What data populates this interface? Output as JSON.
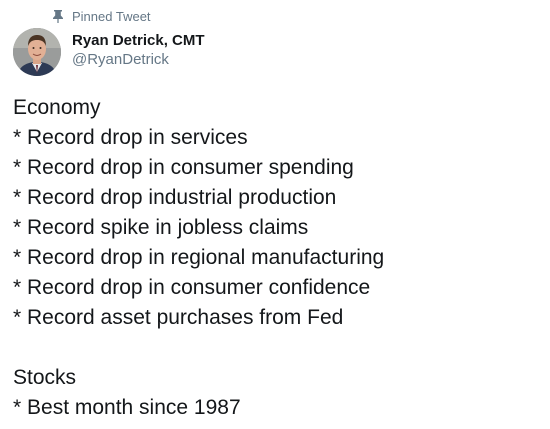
{
  "tweet": {
    "pinned_label": "Pinned Tweet",
    "author": {
      "name": "Ryan Detrick, CMT",
      "handle": "@RyanDetrick"
    },
    "section1": {
      "heading": "Economy",
      "items": [
        "* Record drop in services",
        "* Record drop in consumer spending",
        "* Record drop industrial production",
        "* Record spike in jobless claims",
        "* Record drop in regional manufacturing",
        "* Record drop in consumer confidence",
        "* Record asset purchases from Fed"
      ]
    },
    "section2": {
      "heading": "Stocks",
      "items": [
        "* Best month since 1987"
      ]
    }
  },
  "icons": {
    "pin": "pin-icon",
    "avatar": "avatar"
  },
  "colors": {
    "text": "#14171a",
    "secondary": "#657786",
    "background": "#ffffff"
  }
}
